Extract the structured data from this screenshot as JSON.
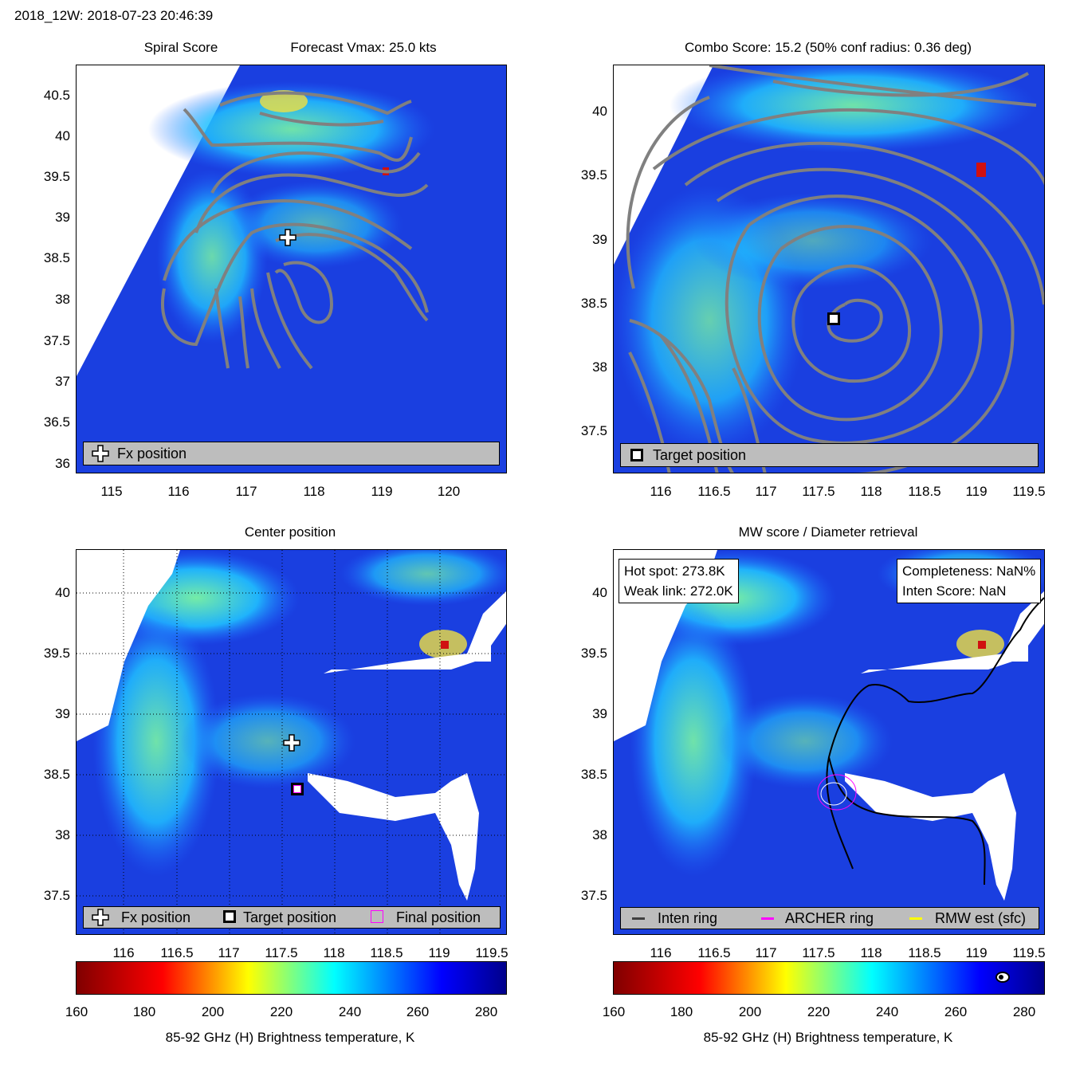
{
  "header": {
    "title": "2018_12W: 2018-07-23 20:46:39"
  },
  "panels": {
    "spiral": {
      "title_left": "Spiral Score",
      "title_right": "Forecast Vmax: 25.0 kts",
      "legend": [
        "Fx position"
      ],
      "yticks": [
        "40.5",
        "40",
        "39.5",
        "39",
        "38.5",
        "38",
        "37.5",
        "37",
        "36.5",
        "36"
      ],
      "xticks": [
        "115",
        "116",
        "117",
        "118",
        "119",
        "120"
      ]
    },
    "combo": {
      "title": "Combo Score: 15.2  (50% conf radius: 0.36 deg)",
      "legend": [
        "Target position"
      ],
      "yticks": [
        "40",
        "39.5",
        "39",
        "38.5",
        "38",
        "37.5"
      ],
      "xticks": [
        "116",
        "116.5",
        "117",
        "117.5",
        "118",
        "118.5",
        "119",
        "119.5"
      ]
    },
    "center": {
      "title": "Center position",
      "legend": [
        "Fx position",
        "Target position",
        "Final position"
      ],
      "yticks": [
        "40",
        "39.5",
        "39",
        "38.5",
        "38",
        "37.5"
      ],
      "xticks": [
        "116",
        "116.5",
        "117",
        "117.5",
        "118",
        "118.5",
        "119",
        "119.5"
      ]
    },
    "mw": {
      "title": "MW score / Diameter retrieval",
      "info_left": [
        "Hot spot: 273.8K",
        "Weak link: 272.0K"
      ],
      "info_right": [
        "Completeness: NaN%",
        "Inten Score: NaN"
      ],
      "legend": [
        "Inten ring",
        "ARCHER ring",
        "RMW est (sfc)"
      ],
      "yticks": [
        "40",
        "39.5",
        "39",
        "38.5",
        "38",
        "37.5"
      ],
      "xticks": [
        "116",
        "116.5",
        "117",
        "117.5",
        "118",
        "118.5",
        "119",
        "119.5"
      ]
    }
  },
  "colorbar": {
    "ticks": [
      "160",
      "180",
      "200",
      "220",
      "240",
      "260",
      "280"
    ],
    "label": "85-92 GHz (H) Brightness temperature, K"
  },
  "chart_data": [
    {
      "type": "heatmap",
      "name": "Spiral Score",
      "xlim": [
        114.5,
        120.85
      ],
      "ylim": [
        35.85,
        40.85
      ],
      "markers": [
        {
          "label": "Fx position",
          "x": 117.6,
          "y": 38.75
        }
      ]
    },
    {
      "type": "heatmap",
      "name": "Combo Score",
      "xlim": [
        115.5,
        119.6
      ],
      "ylim": [
        37.2,
        40.35
      ],
      "markers": [
        {
          "label": "Target position",
          "x": 117.65,
          "y": 38.37
        }
      ]
    },
    {
      "type": "heatmap",
      "name": "Center position",
      "xlim": [
        115.5,
        119.6
      ],
      "ylim": [
        37.2,
        40.35
      ],
      "markers": [
        {
          "label": "Fx position",
          "x": 117.6,
          "y": 38.75
        },
        {
          "label": "Target position",
          "x": 117.65,
          "y": 38.37
        }
      ]
    },
    {
      "type": "heatmap",
      "name": "MW score / Diameter retrieval",
      "xlim": [
        115.5,
        119.6
      ],
      "ylim": [
        37.2,
        40.35
      ],
      "values": {
        "hot_spot_K": 273.8,
        "weak_link_K": 272.0
      }
    }
  ],
  "colors": {
    "bg_blue": "#1a3fe0",
    "contour": "#808080",
    "legend_bg": "#bdbdbd",
    "archer": "#ff00ff"
  }
}
